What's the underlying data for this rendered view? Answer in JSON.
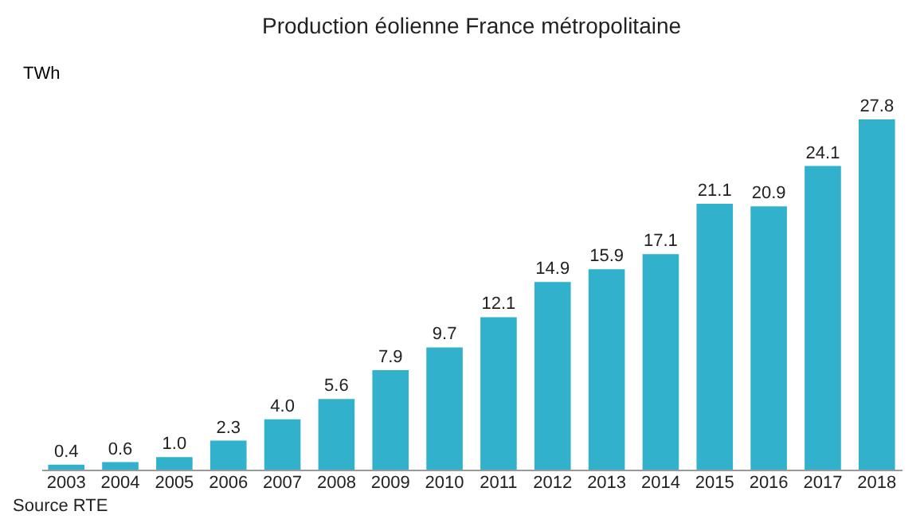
{
  "chart_data": {
    "type": "bar",
    "title": "Production éolienne France métropolitaine",
    "ylabel": "TWh",
    "categories": [
      "2003",
      "2004",
      "2005",
      "2006",
      "2007",
      "2008",
      "2009",
      "2010",
      "2011",
      "2012",
      "2013",
      "2014",
      "2015",
      "2016",
      "2017",
      "2018"
    ],
    "values": [
      0.4,
      0.6,
      1.0,
      2.3,
      4.0,
      5.6,
      7.9,
      9.7,
      12.1,
      14.9,
      15.9,
      17.1,
      21.1,
      20.9,
      24.1,
      27.8
    ],
    "value_labels": [
      "0.4",
      "0.6",
      "1.0",
      "2.3",
      "4.0",
      "5.6",
      "7.9",
      "9.7",
      "12.1",
      "14.9",
      "15.9",
      "17.1",
      "21.1",
      "20.9",
      "24.1",
      "27.8"
    ],
    "color": "#31b1cb",
    "data_labels": true,
    "annotations": [
      "Source RTE"
    ]
  }
}
